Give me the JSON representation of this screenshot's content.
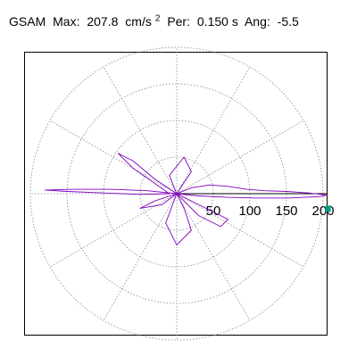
{
  "header": {
    "label": "GSAM",
    "max_label": "Max:",
    "max_value": "207.8",
    "max_unit": "cm/s",
    "max_unit_exp": "2",
    "per_label": "Per:",
    "per_value": "0.150 s",
    "ang_label": "Ang:",
    "ang_value": "-5.5"
  },
  "chart_data": {
    "type": "polar-orbit",
    "title": "GSAM   Max:  207.8 cm/s2  Per:  0.150 s   Ang:  -5.5",
    "r_ticks": [
      50,
      100,
      150,
      200
    ],
    "r_tick_labels": [
      "50",
      "100",
      "150",
      "200"
    ],
    "r_max_grid": 200,
    "angular_grid_step_deg": 30,
    "grid": true,
    "max_value": 207.8,
    "max_angle_deg": -5.5,
    "series": [
      {
        "color": "#8000c0",
        "points": [
          [
            0,
            0
          ],
          [
            20,
            8
          ],
          [
            45,
            12
          ],
          [
            70,
            10
          ],
          [
            95,
            6
          ],
          [
            120,
            4
          ],
          [
            150,
            3
          ],
          [
            180,
            1
          ],
          [
            205,
            -2
          ],
          [
            195,
            -4
          ],
          [
            150,
            -6
          ],
          [
            110,
            -6
          ],
          [
            70,
            -5
          ],
          [
            30,
            -3
          ],
          [
            0,
            0
          ],
          [
            -40,
            4
          ],
          [
            -90,
            6
          ],
          [
            -140,
            6
          ],
          [
            -180,
            5
          ],
          [
            -150,
            3
          ],
          [
            -100,
            1
          ],
          [
            -50,
            -1
          ],
          [
            -10,
            0
          ],
          [
            -60,
            35
          ],
          [
            -80,
            55
          ],
          [
            -60,
            45
          ],
          [
            -30,
            20
          ],
          [
            0,
            0
          ],
          [
            -15,
            -40
          ],
          [
            0,
            -70
          ],
          [
            20,
            -50
          ],
          [
            10,
            -20
          ],
          [
            0,
            0
          ],
          [
            40,
            -20
          ],
          [
            70,
            -35
          ],
          [
            60,
            -45
          ],
          [
            30,
            -30
          ],
          [
            0,
            0
          ],
          [
            20,
            30
          ],
          [
            10,
            50
          ],
          [
            -10,
            25
          ],
          [
            0,
            0
          ],
          [
            -30,
            -10
          ],
          [
            -50,
            -20
          ],
          [
            -20,
            -15
          ],
          [
            0,
            0
          ]
        ]
      }
    ],
    "marker": {
      "color": "#00a080",
      "r": 207.8,
      "angle_deg": -5.5
    }
  }
}
